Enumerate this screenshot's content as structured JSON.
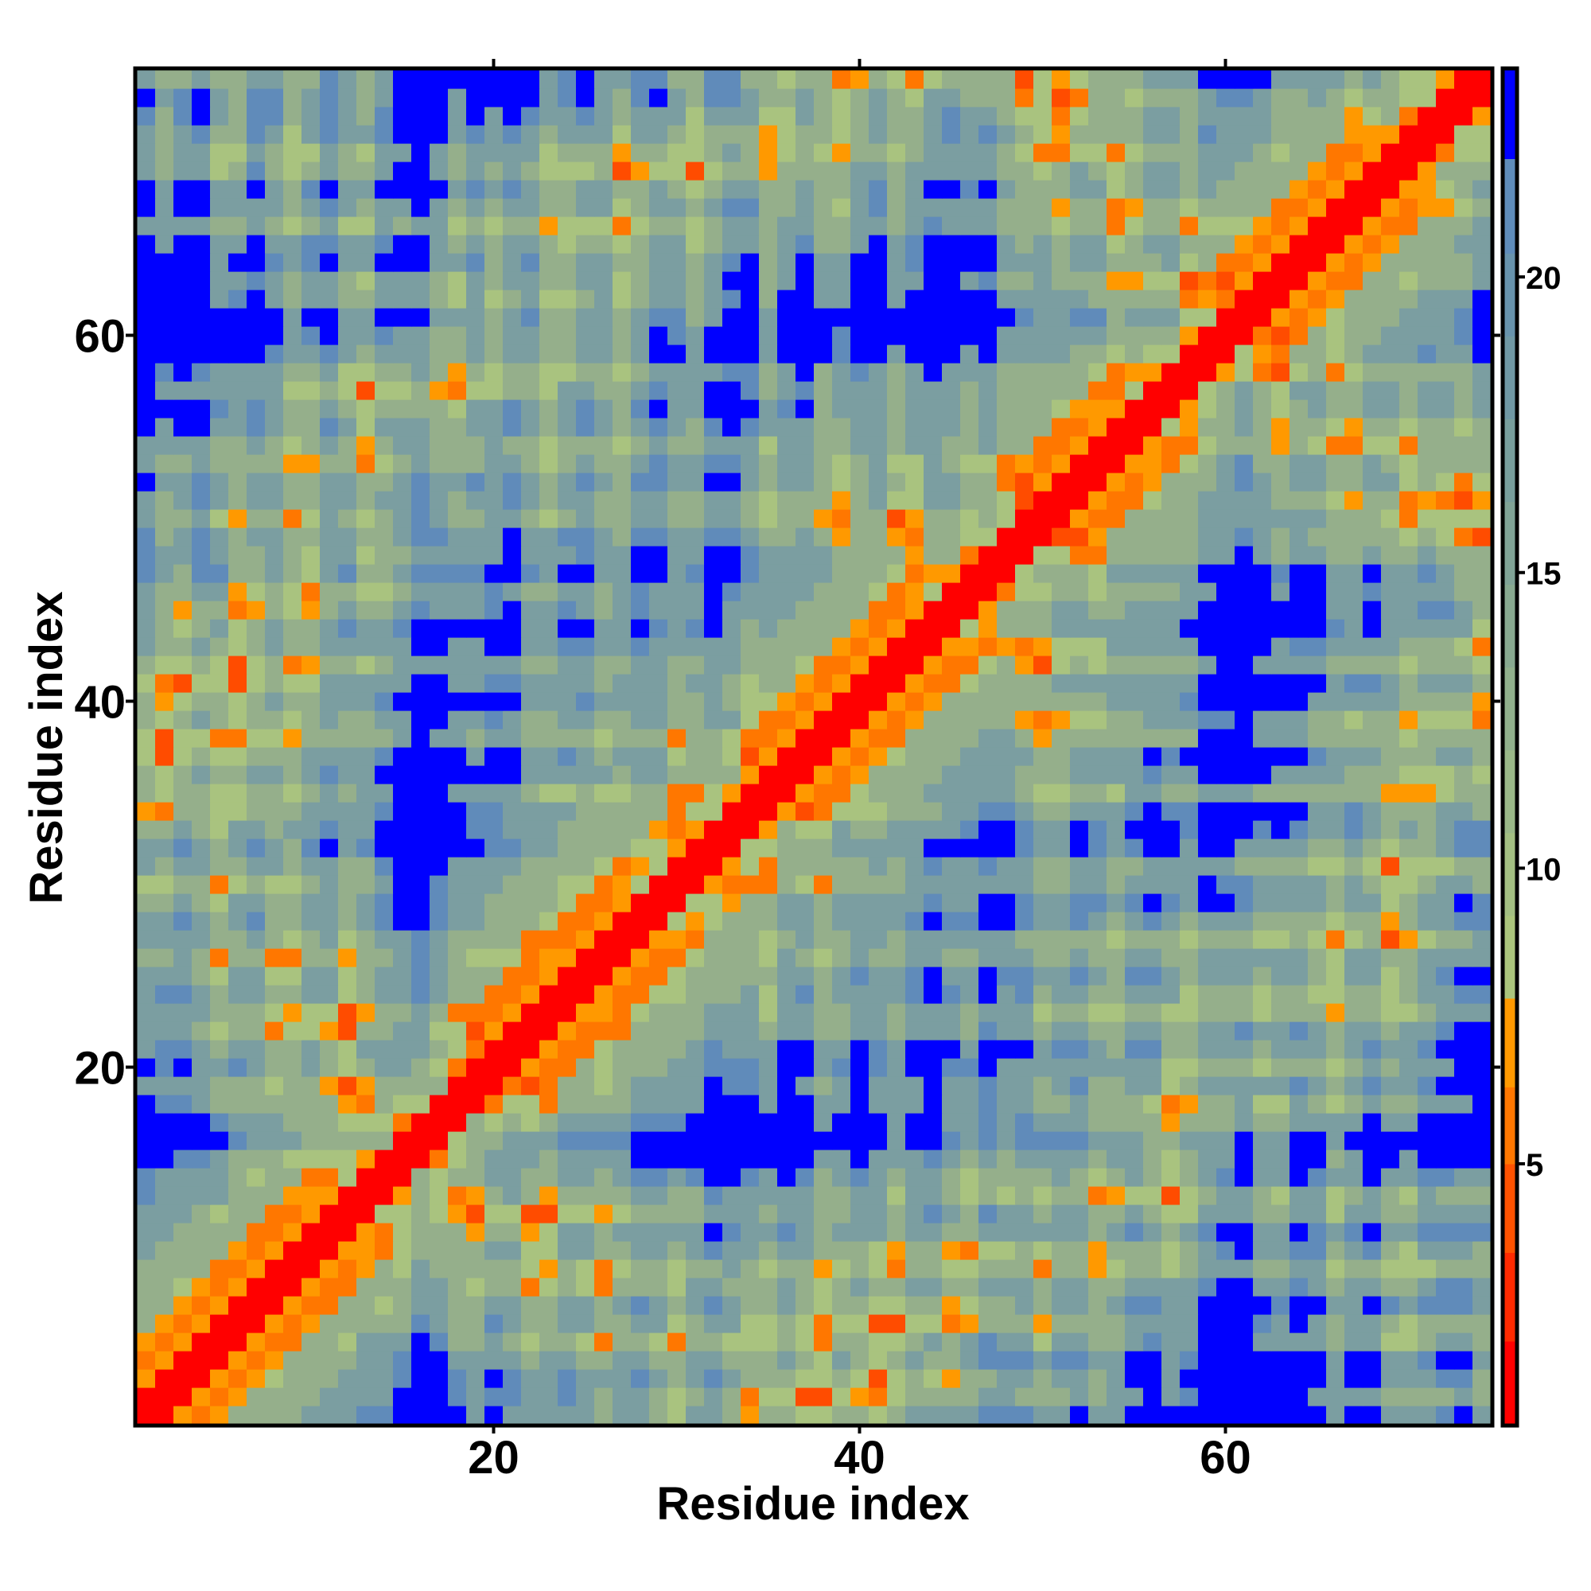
{
  "chart_data": {
    "type": "heatmap",
    "title": "",
    "xlabel": "Residue index",
    "ylabel": "Residue index",
    "n_residues": 74,
    "xlim": [
      0.5,
      74.5
    ],
    "ylim": [
      0.5,
      74.5
    ],
    "grid": false,
    "x_ticks": {
      "values": [
        20,
        40,
        60
      ],
      "labels": [
        "20",
        "40",
        "60"
      ]
    },
    "y_ticks": {
      "values": [
        20,
        40,
        60
      ],
      "labels": [
        "20",
        "40",
        "60"
      ]
    },
    "colorbar": {
      "position": "right",
      "range": [
        0.6,
        23.5
      ],
      "ticks": {
        "values": [
          5,
          10,
          15,
          20
        ],
        "labels": [
          "5",
          "10",
          "15",
          "20"
        ]
      },
      "bands": [
        {
          "from": 0.6,
          "to": 2.0,
          "color": "#ff0000"
        },
        {
          "from": 2.0,
          "to": 3.5,
          "color": "#ff2a00"
        },
        {
          "from": 3.5,
          "to": 5.0,
          "color": "#ff5200"
        },
        {
          "from": 5.0,
          "to": 6.3,
          "color": "#ff7700"
        },
        {
          "from": 6.3,
          "to": 7.8,
          "color": "#ff9900"
        },
        {
          "from": 7.8,
          "to": 9.2,
          "color": "#abc57c"
        },
        {
          "from": 9.2,
          "to": 10.6,
          "color": "#a3bf82"
        },
        {
          "from": 10.6,
          "to": 12.0,
          "color": "#9ab888"
        },
        {
          "from": 12.0,
          "to": 13.4,
          "color": "#91b08c"
        },
        {
          "from": 13.4,
          "to": 14.8,
          "color": "#88a990"
        },
        {
          "from": 14.8,
          "to": 16.2,
          "color": "#80a396"
        },
        {
          "from": 16.2,
          "to": 17.6,
          "color": "#789e9c"
        },
        {
          "from": 17.6,
          "to": 19.0,
          "color": "#7098a4"
        },
        {
          "from": 19.0,
          "to": 20.4,
          "color": "#6893ac"
        },
        {
          "from": 20.4,
          "to": 22.0,
          "color": "#5f8cba"
        },
        {
          "from": 22.0,
          "to": 23.5,
          "color": "#0000ff"
        }
      ]
    },
    "symmetric": true,
    "value_codes": {
      "R": 1.5,
      "r": 4.2,
      "o": 5.6,
      "y": 7.0,
      "1": 9.5,
      "2": 12.5,
      "3": 16.0,
      "4": 19.5,
      "B": 23.0
    },
    "code_colors": {
      "R": "#ff0000",
      "r": "#ff4c00",
      "o": "#ff7700",
      "y": "#ff9900",
      "1": "#a9c37f",
      "2": "#95af8b",
      "3": "#7b9ea1",
      "4": "#608bba",
      "B": "#0000ff"
    },
    "rows_lower": [
      "R",
      "RR",
      "yRR",
      "oyRR",
      "yoyRR",
      "2yoyRR",
      "22yoyRR",
      "221yoyRR",
      "2222ooyRR",
      "32222yoyRR",
      "332222ooyRR",
      "3332122ooyRR",
      "43333222yyyRR",
      "433332122oo1RR",
      "BB4432221111yRR",
      "BBBBB433322222RR",
      "BBBB4333222111oRR",
      "B4432222222yo211RR",
      "3333222122yry2222RR",
      "B4B33432232123321oRR",
      "344323322321333321oRR",
      "3332122o11yr223311ryRR",
      "33332221y11ry2232oooyRR",
      "3443233223312334322ooyRR",
      "33321331133123343222ooyRR",
      "2232o22oo22y223432111oyyRR",
      "333322321231233432222oooyRR",
      "33432342233234BB4332221ooyRR",
      "22321332233234BB43322221ooyRR",
      "1122o121123223BB433322211oy1RR",
      "32332233233224BBB333322221oy1RR",
      "3343234324B34BBBBBB4433222211yRR",
      "2232133233433BBBBB4433322222yoyRR",
      "yo221122233334BBBB44333322222o11RR",
      "21221122123233BBB333321121122oo1yRR",
      "2123223323433BBBBBBBB333332332222yRR",
      "1r121122233334BBBB3BB334323331221ryRR",
      "1r11oo11y222223B3323322221222o221ooyRR",
      "212321221232233BB33432233223322331ooyRR",
      "2y122123223334BBBBBBB33343333223211yoyRR",
      "1or11r121133333BB3344333323332332122yoyRR",
      "21121r12oy221233333332233223322332221ooyRR",
      "322321232233333BB33BB33443343333322222yoyRR",
      "321231232234334BBBBBB33BB33B434B3232222yoyRR",
      "32y22oy21y2322343334B3343234333B33332222ooyRR",
      "32233y121o221123333432233234333B433332221oy1RR",
      "4324422321342234444BB43BB33BB34BB433332221oyyRR",
      "43343223213312233333B333433BB33BB433332222y22oRR",
      "42343233223322344333B33443244334432232y22yo2211RR",
      "32231y22o1321234322332123223322332122yo22ry22121RR",
      "32343233223323343233432332233223321222y231133221rRR",
      "B334323322332234334343234324433BB32332123213322oryRR",
      "32232222yy22o1232223321232234334432332123113211oyoyRR",
      "333322321232y233222322122212322333133223323322322ooyRR",
      "B3BB3343224313332233432343234324B4333223323332322 2ooyRR",
      "BBBB4343223212222133432343 24B33BBB34B2333233323222 1yyyRR",
      "B33333331121r112yo1122133223433BB4234233323332322222oo1RR",
      "B4B43333223112232y21221122123333442 3B234323B33322222 1oyyRR",
      "BBBBBBB4334323332232332233 23BB3BBB3BBB4BB3BBB3B3333221211RR",
      "BBBBBBBB34B33433223233223323B43BBB3BBB4BBBBBBBB3333332222yRR",
      "BBBBBBBB3BB33BBB3332342233234423BB3BBBBBBBBBBBBB43344233311RR",
      "BBBB34B3233223332131231123123323 4B2BB33BB3BBBBB3333322222oyoRR",
      "BBBB3343233213332132332233123323BB23B33BB33BB34223222yy11roryRR",
      "BBBB3BB434B33BBB33423422332233234B23B33BB34BBBB333233222312ooyRR",
      "B3BB33B3344334BB3232332122123312332 34223B34BBBB3232331233222yoyRR",
      "33332232123113233121 22y111o122123323322332343332221 22o122o111yoyRR",
      "B3BB33332343233B323233223312332344223213423333322 2y22oy2212222ooyRR",
      "B3BB33B324B33BBBB343432233223212332 23223423BB4B3222331233232222yoyRR",
      "32331242123223BB3232321112ry11r122y222233233333221 23212332332222yoyRR",
      "323311321132133B3233331222y2211232y121y2212333321oo11o12223332122ooyRR",
      "32342243134334BBB34343233313321222y122123223434321y222233243332222yyyRR",
      "424B3244234324BBB3B3B43343233313331132123223433211o122233233332222y12oRR",
      "B34B3244234323BBB3BBBB34B324B3244322321232133222o1ro2212223443223212211RR",
      "32232233224323BBBBBBBB34B3344224422122oy21o12222r1y1222333BBBB333323211yRR"
    ]
  }
}
